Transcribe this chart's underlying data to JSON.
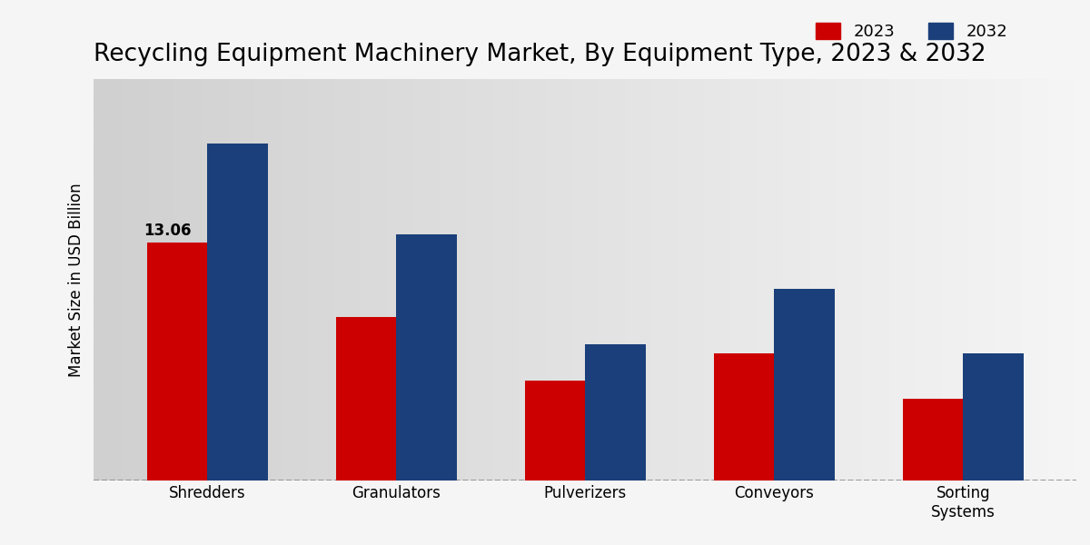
{
  "title": "Recycling Equipment Machinery Market, By Equipment Type, 2023 & 2032",
  "ylabel": "Market Size in USD Billion",
  "categories": [
    "Shredders",
    "Granulators",
    "Pulverizers",
    "Conveyors",
    "Sorting\nSystems"
  ],
  "values_2023": [
    13.06,
    9.0,
    5.5,
    7.0,
    4.5
  ],
  "values_2032": [
    18.5,
    13.5,
    7.5,
    10.5,
    7.0
  ],
  "color_2023": "#cc0000",
  "color_2032": "#1b3f7a",
  "bar_annotation": "13.06",
  "bar_annotation_index": 0,
  "background_left": "#d0d0d0",
  "background_right": "#f5f5f5",
  "title_fontsize": 19,
  "ylabel_fontsize": 12,
  "tick_fontsize": 12,
  "legend_fontsize": 13,
  "bar_width": 0.32,
  "ylim": [
    0,
    22
  ],
  "legend_labels": [
    "2023",
    "2032"
  ]
}
